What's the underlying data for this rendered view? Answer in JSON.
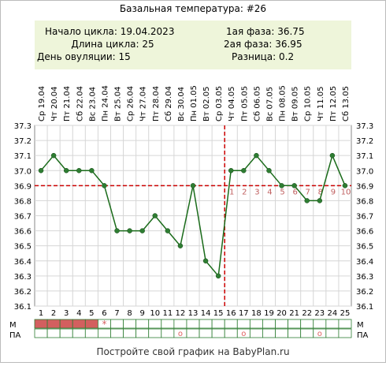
{
  "title": "Базальная температура: #26",
  "info": {
    "cycle_start": "Начало цикла: 19.04.2023",
    "cycle_length": "Длина цикла: 25",
    "ovulation_day": "День овуляции: 15",
    "phase1": "1ая фаза: 36.75",
    "phase2": "2ая фаза: 36.95",
    "difference": "Разница: 0.2"
  },
  "footer": "Постройте свой график на BabyPlan.ru",
  "colors": {
    "line": "#1a6b1a",
    "point": "#2e7d32",
    "coverline": "#cc0000",
    "info_bg": "#eef5da",
    "menstruation": "#d35f5f",
    "phase2_label": "#c06060",
    "circle_marker": "#e06060"
  },
  "chart_data": {
    "type": "line",
    "x": [
      1,
      2,
      3,
      4,
      5,
      6,
      7,
      8,
      9,
      10,
      11,
      12,
      13,
      14,
      15,
      16,
      17,
      18,
      19,
      20,
      21,
      22,
      23,
      24,
      25
    ],
    "dates": [
      "Ср 19.04",
      "Чт 20.04",
      "Пт 21.04",
      "Сб 22.04",
      "Вс 23.04",
      "Пн 24.04",
      "Вт 25.04",
      "Ср 26.04",
      "Чт 27.04",
      "Пт 28.04",
      "Сб 29.04",
      "Вс 30.04",
      "Пн 01.05",
      "Вт 02.05",
      "Ср 03.05",
      "Чт 04.05",
      "Пт 05.05",
      "Сб 06.05",
      "Вс 07.05",
      "Пн 08.05",
      "Вт 09.05",
      "Ср 10.05",
      "Чт 11.05",
      "Пт 12.05",
      "Сб 13.05"
    ],
    "values": [
      37.0,
      37.1,
      37.0,
      37.0,
      37.0,
      36.9,
      36.6,
      36.6,
      36.6,
      36.7,
      36.6,
      36.5,
      36.9,
      36.4,
      36.3,
      37.0,
      37.0,
      37.1,
      37.0,
      36.9,
      36.9,
      36.8,
      36.8,
      37.1,
      36.9
    ],
    "ylim": [
      36.1,
      37.3
    ],
    "yticks": [
      "36.1",
      "36.2",
      "36.3",
      "36.4",
      "36.5",
      "36.6",
      "36.7",
      "36.8",
      "36.9",
      "37.0",
      "37.1",
      "37.2",
      "37.3"
    ],
    "coverline": 36.9,
    "ovulation_day": 15,
    "phase2_labels": [
      "1",
      "2",
      "3",
      "4",
      "5",
      "6",
      "7",
      "8",
      "9",
      "10"
    ],
    "grid": true,
    "moon_day": 12,
    "rows": {
      "m_label": "М",
      "pa_label": "ПА",
      "menstruation_days": [
        1,
        2,
        3,
        4,
        5
      ],
      "star_day": 6,
      "star_symbol": "*",
      "pa_circle_days": [
        12,
        17,
        23
      ],
      "pa_circle_symbol": "o"
    }
  }
}
